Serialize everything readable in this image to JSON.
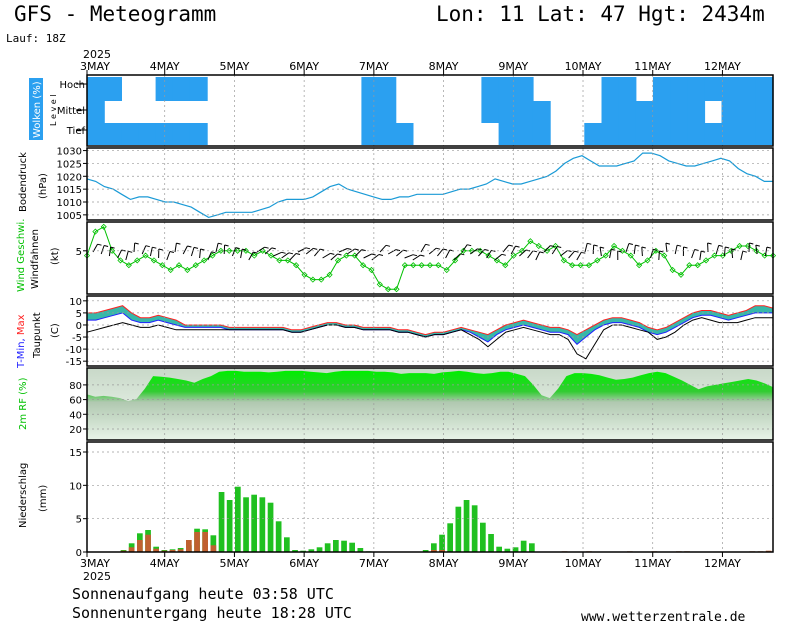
{
  "header": {
    "title": "GFS - Meteogramm",
    "location": "Lon: 11  Lat: 47  Hgt: 2434m",
    "run": "Lauf: 18Z"
  },
  "footer": {
    "sunrise": "Sonnenaufgang heute 03:58 UTC",
    "sunset": "Sonnenuntergang heute 18:28 UTC",
    "site": "www.wetterzentrale.de"
  },
  "time_axis": {
    "year": "2025",
    "days": [
      "3MAY",
      "4MAY",
      "5MAY",
      "6MAY",
      "7MAY",
      "8MAY",
      "9MAY",
      "10MAY",
      "11MAY",
      "12MAY"
    ]
  },
  "colors": {
    "cloud": "#2ba0f0",
    "pressure": "#1a9ad6",
    "wind_green": "#00c000",
    "rain_green": "#20c020",
    "snow_brown": "#c06030",
    "tmax": "#ff2020",
    "tmin": "#2020ff"
  },
  "chart_data": [
    {
      "type": "heatmap",
      "panel": "clouds",
      "ylabel": "Wolken (%)",
      "ylabel2": "L e v e l",
      "levels": [
        "Hoch",
        "Mittel",
        "Tief"
      ],
      "note": "approximate cloud-band coverage per 6-hour step",
      "hoch": [
        1,
        1,
        0,
        0,
        1,
        1,
        1,
        0,
        0,
        0,
        0,
        0,
        0,
        0,
        0,
        0,
        1,
        1,
        0,
        0,
        0,
        0,
        0,
        1,
        1,
        1,
        0,
        0,
        0,
        0,
        1,
        1,
        0,
        1,
        1,
        1,
        1,
        1,
        1,
        1
      ],
      "mittel": [
        1,
        0,
        0,
        0,
        0,
        0,
        0,
        0,
        0,
        0,
        0,
        0,
        0,
        0,
        0,
        0,
        1,
        1,
        0,
        0,
        0,
        0,
        0,
        1,
        1,
        1,
        1,
        0,
        0,
        0,
        1,
        1,
        1,
        1,
        1,
        1,
        0,
        1,
        1,
        1
      ],
      "tief": [
        1,
        1,
        1,
        1,
        1,
        1,
        1,
        0,
        0,
        0,
        0,
        0,
        0,
        0,
        0,
        0,
        1,
        1,
        1,
        0,
        0,
        0,
        0,
        0,
        1,
        1,
        1,
        0,
        0,
        1,
        1,
        1,
        1,
        1,
        1,
        1,
        1,
        1,
        1,
        1
      ]
    },
    {
      "type": "line",
      "panel": "pressure",
      "ylabel": "Bodendruck",
      "ylabel2": "(hPa)",
      "ylim": [
        1003,
        1031
      ],
      "yticks": [
        1005,
        1010,
        1015,
        1020,
        1025,
        1030
      ],
      "series": [
        {
          "values": [
            1019,
            1018,
            1016,
            1015,
            1013,
            1011,
            1012,
            1012,
            1011,
            1010,
            1010,
            1009,
            1008,
            1006,
            1004,
            1005,
            1006,
            1006,
            1006,
            1006,
            1007,
            1008,
            1010,
            1011,
            1011,
            1011,
            1012,
            1014,
            1016,
            1017,
            1015,
            1014,
            1013,
            1012,
            1011,
            1011,
            1012,
            1012,
            1013,
            1013,
            1013,
            1013,
            1014,
            1015,
            1015,
            1016,
            1017,
            1019,
            1018,
            1017,
            1017,
            1018,
            1019,
            1020,
            1022,
            1025,
            1027,
            1028,
            1026,
            1024,
            1024,
            1024,
            1025,
            1026,
            1029,
            1029,
            1028,
            1026,
            1025,
            1024,
            1024,
            1025,
            1026,
            1027,
            1026,
            1023,
            1021,
            1020,
            1018,
            1018
          ]
        }
      ]
    },
    {
      "type": "line",
      "panel": "wind",
      "ylabel": "Wind Geschwi.",
      "ylabel2": "Windfahnen",
      "ylabel3": "(kt)",
      "ylim": [
        -4,
        11
      ],
      "yticks": [
        5
      ],
      "series": [
        {
          "values": [
            4,
            9,
            10,
            5,
            3,
            2,
            3,
            4,
            3,
            2,
            1,
            2,
            1,
            2,
            3,
            4,
            5,
            5,
            5,
            5,
            4,
            5,
            4,
            3,
            3,
            2,
            0,
            -1,
            -1,
            0,
            3,
            4,
            4,
            2,
            1,
            -2,
            -3,
            -3,
            2,
            2,
            2,
            2,
            2,
            1,
            3,
            5,
            5,
            5,
            4,
            3,
            2,
            4,
            5,
            7,
            6,
            5,
            6,
            3,
            2,
            2,
            2,
            3,
            4,
            6,
            5,
            4,
            2,
            3,
            5,
            4,
            1,
            0,
            2,
            2,
            3,
            4,
            4,
            5,
            6,
            6,
            5,
            4,
            4
          ]
        }
      ]
    },
    {
      "type": "line",
      "panel": "temperature",
      "ylabel": "T-Min, Max",
      "ylabel2": "Taupunkt",
      "ylabel3": "(C)",
      "ylim": [
        -17,
        12
      ],
      "yticks": [
        -15,
        -10,
        -5,
        0,
        5,
        10
      ],
      "series": [
        {
          "name": "Max",
          "values": [
            5,
            5,
            6,
            7,
            8,
            5,
            3,
            3,
            4,
            3,
            2,
            0,
            0,
            0,
            0,
            0,
            -1,
            -1,
            -1,
            -1,
            -1,
            -1,
            -1,
            -2,
            -2,
            -1,
            0,
            1,
            1,
            0,
            0,
            -1,
            -1,
            -1,
            -1,
            -2,
            -2,
            -3,
            -4,
            -3,
            -3,
            -2,
            -1,
            -2,
            -3,
            -4,
            -2,
            0,
            1,
            2,
            1,
            0,
            -1,
            -1,
            -2,
            -4,
            -2,
            0,
            2,
            3,
            3,
            2,
            1,
            -1,
            -2,
            -1,
            1,
            3,
            5,
            6,
            6,
            5,
            4,
            5,
            6,
            8,
            8,
            7
          ]
        },
        {
          "name": "Min",
          "values": [
            2,
            2,
            3,
            4,
            5,
            2,
            1,
            1,
            2,
            1,
            0,
            -1,
            -1,
            -1,
            -1,
            -1,
            -2,
            -2,
            -2,
            -2,
            -2,
            -2,
            -2,
            -3,
            -3,
            -2,
            -1,
            0,
            0,
            -1,
            -1,
            -2,
            -2,
            -2,
            -2,
            -3,
            -3,
            -4,
            -5,
            -4,
            -4,
            -3,
            -2,
            -3,
            -5,
            -7,
            -4,
            -2,
            -1,
            0,
            -1,
            -2,
            -3,
            -3,
            -4,
            -8,
            -5,
            -2,
            0,
            1,
            1,
            0,
            -1,
            -3,
            -4,
            -3,
            -1,
            1,
            3,
            4,
            4,
            3,
            2,
            3,
            4,
            5,
            5,
            5
          ]
        },
        {
          "name": "Taupunkt",
          "values": [
            -3,
            -2,
            -1,
            0,
            1,
            0,
            -1,
            -1,
            0,
            -1,
            -2,
            -2,
            -2,
            -2,
            -2,
            -2,
            -2,
            -2,
            -2,
            -2,
            -2,
            -2,
            -2,
            -3,
            -3,
            -2,
            -1,
            0,
            0,
            -1,
            -1,
            -2,
            -2,
            -2,
            -2,
            -3,
            -3,
            -4,
            -5,
            -4,
            -4,
            -3,
            -2,
            -4,
            -6,
            -9,
            -6,
            -3,
            -2,
            -1,
            -2,
            -3,
            -4,
            -4,
            -6,
            -12,
            -14,
            -8,
            -2,
            0,
            0,
            -1,
            -2,
            -3,
            -6,
            -5,
            -3,
            0,
            2,
            3,
            2,
            1,
            1,
            1,
            2,
            3,
            3,
            3
          ]
        }
      ]
    },
    {
      "type": "area",
      "panel": "humidity",
      "ylabel": "2m RF (%)",
      "ylim": [
        5,
        103
      ],
      "yticks": [
        20,
        40,
        60,
        80
      ],
      "series": [
        {
          "values": [
            67,
            64,
            65,
            64,
            62,
            58,
            61,
            75,
            92,
            91,
            90,
            88,
            86,
            83,
            88,
            92,
            98,
            99,
            99,
            98,
            98,
            98,
            97,
            98,
            99,
            99,
            99,
            98,
            97,
            96,
            98,
            99,
            99,
            99,
            99,
            98,
            98,
            97,
            95,
            96,
            96,
            96,
            95,
            97,
            98,
            99,
            98,
            96,
            95,
            96,
            98,
            98,
            95,
            92,
            80,
            66,
            62,
            75,
            92,
            96,
            96,
            95,
            93,
            90,
            87,
            88,
            90,
            93,
            96,
            98,
            96,
            91,
            86,
            80,
            74,
            78,
            80,
            82,
            84,
            86,
            88,
            86,
            82,
            77
          ]
        }
      ]
    },
    {
      "type": "bar",
      "panel": "precipitation",
      "ylabel": "Niederschlag",
      "ylabel2": "(mm)",
      "ylim": [
        0,
        16.5
      ],
      "yticks": [
        0,
        5,
        10,
        15
      ],
      "rain": [
        0,
        0,
        0,
        0,
        0.3,
        1.3,
        2.8,
        3.3,
        0.8,
        0.3,
        0.4,
        0.6,
        1.0,
        3.5,
        3.4,
        2.5,
        9.0,
        7.8,
        9.8,
        8.2,
        8.6,
        8.2,
        7.4,
        4.6,
        2.2,
        0.3,
        0.2,
        0.4,
        0.7,
        1.3,
        1.8,
        1.7,
        1.4,
        0.6,
        0.1,
        0,
        0,
        0,
        0,
        0,
        0,
        0.3,
        1.3,
        2.6,
        4.3,
        6.8,
        7.8,
        7.0,
        4.4,
        2.7,
        0.8,
        0.5,
        0.7,
        1.7,
        1.3,
        0,
        0,
        0,
        0,
        0,
        0,
        0,
        0,
        0,
        0,
        0,
        0,
        0,
        0,
        0,
        0,
        0,
        0,
        0,
        0,
        0,
        0,
        0,
        0,
        0,
        0,
        0,
        0,
        0
      ],
      "snow": [
        0,
        0,
        0,
        0,
        0.2,
        0.7,
        1.8,
        2.6,
        0.5,
        0.2,
        0.3,
        0.4,
        1.8,
        3.0,
        3.0,
        1.0,
        0,
        0,
        0,
        0,
        0,
        0,
        0,
        0,
        0,
        0,
        0,
        0,
        0,
        0,
        0,
        0,
        0,
        0,
        0,
        0,
        0,
        0,
        0,
        0,
        0,
        0,
        0.3,
        0.3,
        0,
        0,
        0,
        0,
        0,
        0,
        0,
        0,
        0,
        0,
        0,
        0,
        0,
        0,
        0.1,
        0,
        0,
        0.1,
        0,
        0,
        0,
        0,
        0.1,
        0,
        0,
        0.1,
        0,
        0,
        0.1,
        0.1,
        0,
        0,
        0,
        0,
        0,
        0,
        0,
        0.1,
        0.1,
        0.2
      ]
    }
  ]
}
